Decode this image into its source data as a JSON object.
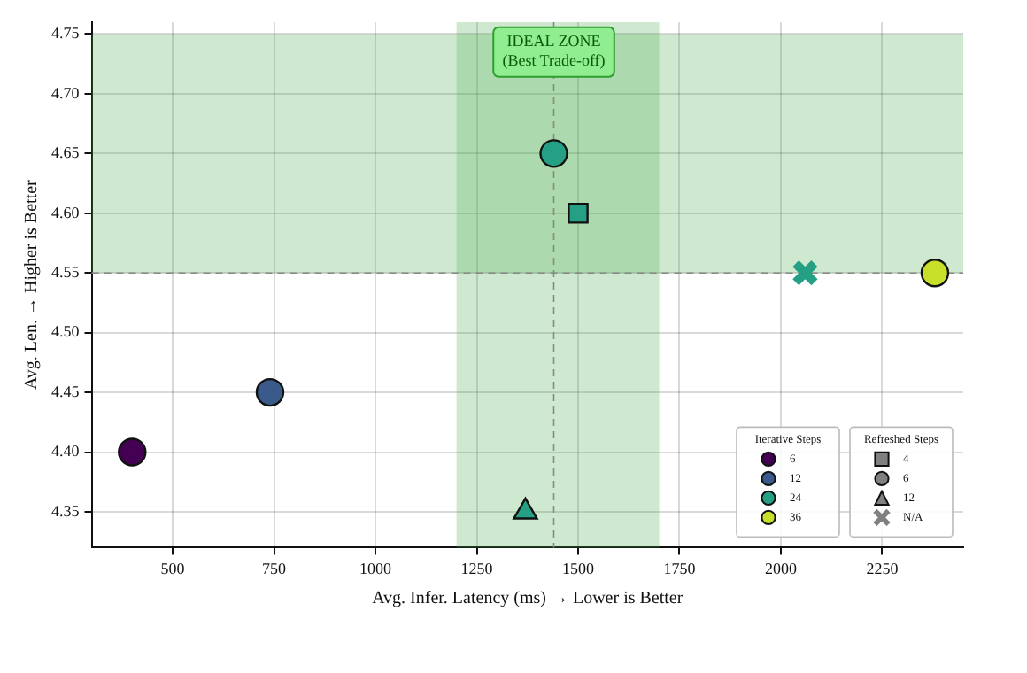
{
  "chart_data": {
    "type": "scatter",
    "xlabel": "Avg. Infer. Latency (ms) → Lower is Better",
    "ylabel": "Avg. Len. → Higher is Better",
    "xlim": [
      300,
      2450
    ],
    "xticks": [
      500,
      750,
      1000,
      1250,
      1500,
      1750,
      2000,
      2250
    ],
    "ylim": [
      4.32,
      4.76
    ],
    "yticks": [
      4.35,
      {
        "value": 4.4,
        "label": "4.40"
      },
      4.45,
      {
        "value": 4.5,
        "label": "4.50"
      },
      4.55,
      {
        "value": 4.6,
        "label": "4.60"
      },
      4.65,
      {
        "value": 4.7,
        "label": "4.70"
      },
      4.75
    ],
    "grid": true,
    "legend": "bottom right",
    "legend_title": "Iterative Steps",
    "series": [
      {
        "name": "6",
        "color": "#440154",
        "x": [
          400
        ],
        "values": [
          4.4
        ],
        "marker": "circle"
      },
      {
        "name": "12",
        "color": "#3b5a8c",
        "x": [
          740
        ],
        "values": [
          4.45
        ],
        "marker": "circle"
      },
      {
        "name": "24",
        "color": "#25a085",
        "x": [
          1440
        ],
        "values": [
          4.65
        ],
        "marker": "circle"
      },
      {
        "name": "36",
        "color": "#c8df2a",
        "x": [
          2380
        ],
        "values": [
          4.55
        ],
        "marker": "circle"
      },
      {
        "color": "#25a085",
        "x": [
          1500
        ],
        "values": [
          4.6
        ],
        "marker": "square"
      },
      {
        "color": "#25a085",
        "x": [
          1370
        ],
        "values": [
          4.35
        ],
        "marker": "triangle"
      },
      {
        "color": "#25a085",
        "x": [
          2060
        ],
        "values": [
          4.55
        ],
        "marker": "cross"
      },
      {
        "name": "4",
        "color": "#808080",
        "marker": "square"
      },
      {
        "name": "6",
        "color": "#808080",
        "marker": "circle"
      },
      {
        "name": "12",
        "color": "#808080",
        "marker": "triangle"
      },
      {
        "name": "N/A",
        "color": "#808080",
        "marker": "cross"
      }
    ],
    "bands": [
      {
        "axis": "x",
        "from": 1200,
        "to": 1700,
        "color": "#4caf50"
      },
      {
        "axis": "y",
        "from": 4.55,
        "to": 4.75,
        "color": "#4caf50"
      }
    ],
    "ref_lines": [
      {
        "axis": "x",
        "value": 1440,
        "line_style": "dashed",
        "color": "#888888"
      },
      {
        "axis": "y",
        "value": 4.55,
        "line_style": "dashed",
        "color": "#888888"
      }
    ],
    "annotations": [
      {
        "text": "IDEAL ZONE\n(Best Trade-off)",
        "x": 1440,
        "y": 4.735
      },
      "Refreshed Steps"
    ]
  }
}
